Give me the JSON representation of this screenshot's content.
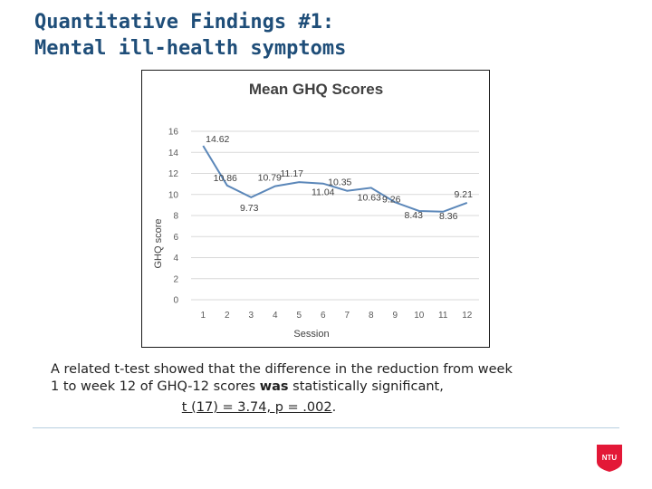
{
  "slide": {
    "title_line1": "Quantitative Findings #1:",
    "title_line2": "Mental ill-health symptoms"
  },
  "body": {
    "line1": "A related t-test showed that the difference in the reduction from week",
    "line2_pre": "1 to week 12 of GHQ-12 scores ",
    "line2_bold": "was",
    "line2_post": " statistically significant,",
    "stat": "t (17) = 3.74, p = .002",
    "stat_end": "."
  },
  "logo": {
    "text": "NTU",
    "color": "#e31837"
  },
  "colors": {
    "title": "#1f4e79",
    "series": "#5b87b9",
    "grid": "#d9d9d9"
  },
  "chart_data": {
    "type": "line",
    "title": "Mean GHQ Scores",
    "xlabel": "Session",
    "ylabel": "GHQ score",
    "x": [
      1,
      2,
      3,
      4,
      5,
      6,
      7,
      8,
      9,
      10,
      11,
      12
    ],
    "ylim": [
      0,
      16
    ],
    "yticks": [
      0,
      2,
      4,
      6,
      8,
      10,
      12,
      14,
      16
    ],
    "grid": true,
    "legend": "none",
    "series": [
      {
        "values": [
          14.62,
          10.86,
          9.73,
          10.79,
          11.17,
          11.04,
          10.35,
          10.63,
          9.26,
          8.43,
          8.36,
          9.21
        ],
        "labels": [
          "14.62",
          "10.86",
          "9.73",
          "10.79",
          "11.17",
          "11.04",
          "10.35",
          "10.63",
          "9.26",
          "8.43",
          "8.36",
          "9.21"
        ]
      }
    ]
  }
}
